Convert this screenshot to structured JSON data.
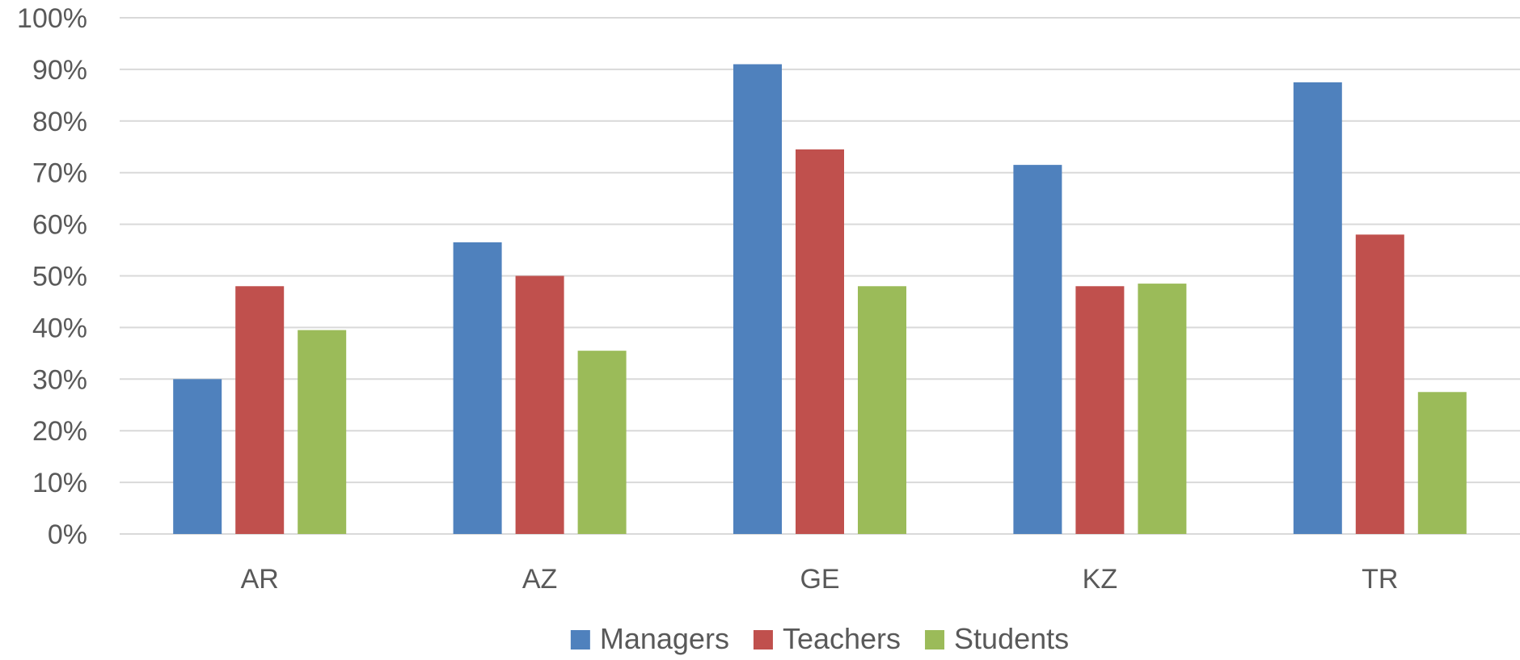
{
  "chart_data": {
    "type": "bar",
    "title": "",
    "xlabel": "",
    "ylabel": "",
    "categories": [
      "AR",
      "AZ",
      "GE",
      "KZ",
      "TR"
    ],
    "series": [
      {
        "name": "Managers",
        "values": [
          30,
          56.5,
          91,
          71.5,
          87.5
        ],
        "color": "#4f81bd"
      },
      {
        "name": "Teachers",
        "values": [
          48,
          50,
          74.5,
          48,
          58
        ],
        "color": "#c0504d"
      },
      {
        "name": "Students",
        "values": [
          39.5,
          35.5,
          48,
          48.5,
          27.5
        ],
        "color": "#9bbb59"
      }
    ],
    "ylim": [
      0,
      100
    ],
    "yticks": [
      "0%",
      "10%",
      "20%",
      "30%",
      "40%",
      "50%",
      "60%",
      "70%",
      "80%",
      "90%",
      "100%"
    ],
    "grid": true,
    "legend_position": "bottom"
  }
}
